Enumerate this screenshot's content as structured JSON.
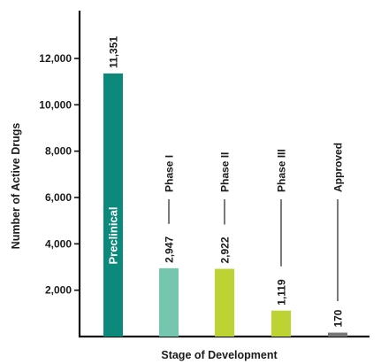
{
  "chart_data": {
    "type": "bar",
    "xlabel": "Stage of Development",
    "ylabel": "Number of Active Drugs",
    "ylim": [
      0,
      14200
    ],
    "yticks": [
      2000,
      4000,
      6000,
      8000,
      10000,
      12000
    ],
    "ytick_labels": [
      "2,000",
      "4,000",
      "6,000",
      "8,000",
      "10,000",
      "12,000"
    ],
    "grid": false,
    "legend": "none",
    "bars": [
      {
        "stage": "Preclinical",
        "value": 11351,
        "value_label": "11,351",
        "color": "#0b8a7c",
        "label_inside": true
      },
      {
        "stage": "Phase I",
        "value": 2947,
        "value_label": "2,947",
        "color": "#74c6ae",
        "label_inside": false
      },
      {
        "stage": "Phase II",
        "value": 2922,
        "value_label": "2,922",
        "color": "#bdd233",
        "label_inside": false
      },
      {
        "stage": "Phase III",
        "value": 1119,
        "value_label": "1,119",
        "color": "#bdd233",
        "label_inside": false
      },
      {
        "stage": "Approved",
        "value": 170,
        "value_label": "170",
        "color": "#777777",
        "label_inside": false
      }
    ]
  }
}
